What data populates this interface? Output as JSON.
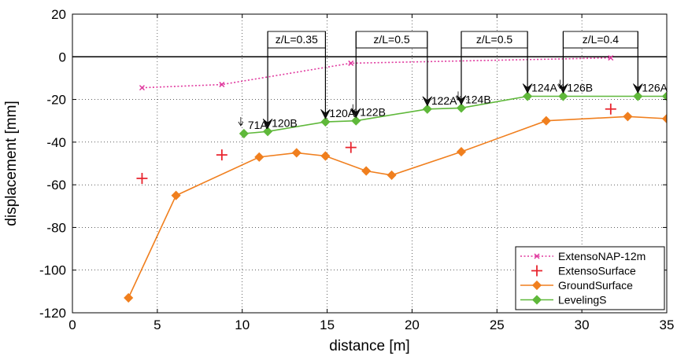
{
  "chart_data": {
    "type": "line",
    "xlabel": "distance [m]",
    "ylabel": "displacement [mm]",
    "xlim": [
      0,
      35
    ],
    "ylim": [
      -120,
      20
    ],
    "xticks": [
      0,
      5,
      10,
      15,
      20,
      25,
      30,
      35
    ],
    "yticks": [
      20,
      0,
      -20,
      -40,
      -60,
      -80,
      -100,
      -120
    ],
    "grid": "dotted",
    "legend": "bottom-right",
    "zero_line": true,
    "series": [
      {
        "name": "ExtensoNAP-12m",
        "style": "dotted",
        "marker": "x",
        "color": "#e0389e",
        "points": [
          [
            4.1,
            -14.5
          ],
          [
            8.8,
            -13
          ],
          [
            16.4,
            -3
          ],
          [
            31.7,
            -0.5
          ]
        ]
      },
      {
        "name": "ExtensoSurface",
        "style": "none",
        "marker": "plus",
        "color": "#e8242e",
        "points": [
          [
            4.1,
            -57
          ],
          [
            8.8,
            -46
          ],
          [
            16.4,
            -42.5
          ],
          [
            31.7,
            -24.5
          ]
        ]
      },
      {
        "name": "GroundSurface",
        "style": "solid",
        "marker": "diamond",
        "color": "#f07f1e",
        "points": [
          [
            3.3,
            -113
          ],
          [
            6.1,
            -65
          ],
          [
            11,
            -47
          ],
          [
            13.2,
            -45
          ],
          [
            14.9,
            -46.5
          ],
          [
            17.3,
            -53.5
          ],
          [
            18.8,
            -55.5
          ],
          [
            22.9,
            -44.5
          ],
          [
            27.9,
            -30
          ],
          [
            32.7,
            -28
          ],
          [
            35,
            -29
          ]
        ]
      },
      {
        "name": "LevelingS",
        "style": "solid",
        "marker": "diamond",
        "color": "#5fb83a",
        "points": [
          [
            10.1,
            -36
          ],
          [
            11.5,
            -35
          ],
          [
            14.9,
            -30.5
          ],
          [
            16.7,
            -30
          ],
          [
            20.9,
            -24.5
          ],
          [
            22.9,
            -24
          ],
          [
            26.8,
            -18.5
          ],
          [
            28.9,
            -18.5
          ],
          [
            33.3,
            -18.5
          ],
          [
            35,
            -18.5
          ]
        ]
      }
    ],
    "point_labels": [
      {
        "text": "71A",
        "x": 10.1,
        "y": -36
      },
      {
        "text": "120B",
        "x": 11.5,
        "y": -35
      },
      {
        "text": "120A",
        "x": 14.9,
        "y": -30.5
      },
      {
        "text": "122B",
        "x": 16.7,
        "y": -30
      },
      {
        "text": "122A",
        "x": 20.9,
        "y": -24.5
      },
      {
        "text": "124B",
        "x": 22.9,
        "y": -24
      },
      {
        "text": "124A",
        "x": 26.8,
        "y": -18.5
      },
      {
        "text": "126B",
        "x": 28.9,
        "y": -18.5
      },
      {
        "text": "126A",
        "x": 33.3,
        "y": -18.5
      }
    ],
    "annotations": [
      {
        "text": "z/L=0.35",
        "x1": 11.5,
        "x2": 14.9
      },
      {
        "text": "z/L=0.5",
        "x1": 16.7,
        "x2": 20.9
      },
      {
        "text": "z/L=0.5",
        "x1": 22.9,
        "x2": 26.8
      },
      {
        "text": "z/L=0.4",
        "x1": 28.9,
        "x2": 33.3
      }
    ],
    "small_arrows": [
      10.1,
      16.7,
      22.9,
      28.9
    ]
  }
}
